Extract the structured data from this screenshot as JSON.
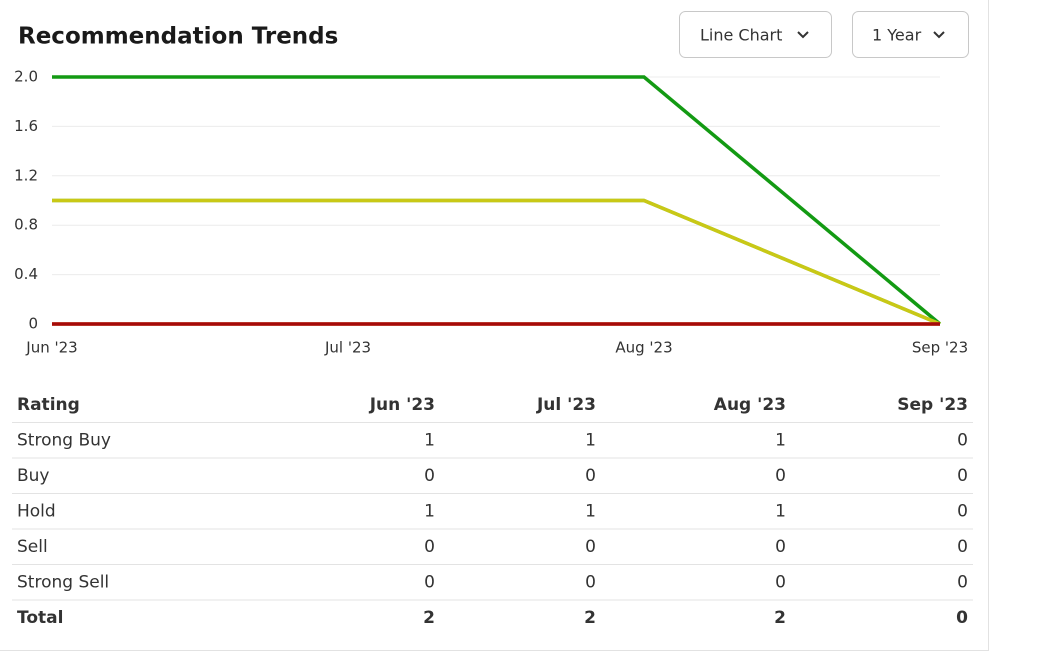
{
  "chart_data": {
    "type": "line",
    "title": "Recommendation Trends",
    "stacked": true,
    "controls": [
      "Line Chart",
      "1 Year"
    ],
    "categories": [
      "Jun '23",
      "Jul '23",
      "Aug '23",
      "Sep '23"
    ],
    "series": [
      {
        "name": "Strong Buy",
        "color": "#139a13",
        "values": [
          1,
          1,
          1,
          0
        ]
      },
      {
        "name": "Buy",
        "color": "#7cc242",
        "values": [
          0,
          0,
          0,
          0
        ]
      },
      {
        "name": "Hold",
        "color": "#c9c816",
        "values": [
          1,
          1,
          1,
          0
        ]
      },
      {
        "name": "Sell",
        "color": "#e0761c",
        "values": [
          0,
          0,
          0,
          0
        ]
      },
      {
        "name": "Strong Sell",
        "color": "#a50a0a",
        "values": [
          0,
          0,
          0,
          0
        ]
      }
    ],
    "ylim": [
      0,
      2
    ],
    "yticks": [
      0,
      0.4,
      0.8,
      1.2,
      1.6,
      {
        "value": 2,
        "label": "2.0"
      }
    ],
    "grid": true,
    "table": {
      "header": "Rating",
      "total_label": "Total",
      "totals": [
        2,
        2,
        2,
        0
      ]
    }
  }
}
